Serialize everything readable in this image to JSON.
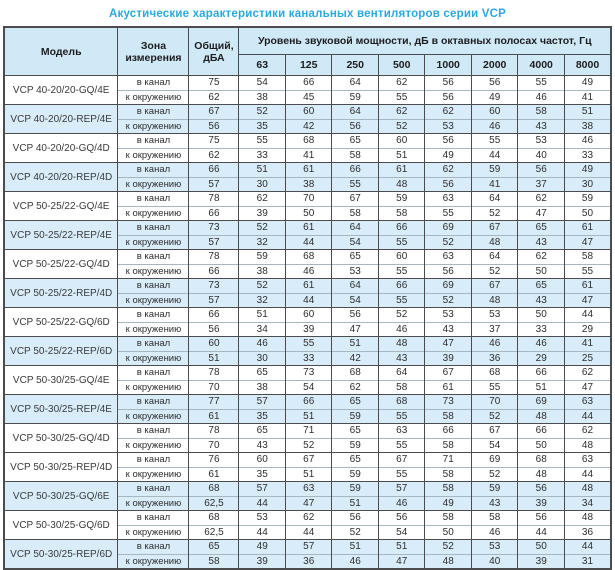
{
  "title": "Акустические характеристики канальных вентиляторов  серии VCP",
  "colors": {
    "title_accent": "#29a9e0",
    "header_bg": "#cfe9f6",
    "row_highlight_bg": "#d8edf9",
    "border_dark": "#4c4c4e",
    "border_light": "#a7b7c1"
  },
  "table": {
    "headers": {
      "model": "Модель",
      "zone": "Зона измерения",
      "total": "Общий, дБА",
      "spl": "Уровень звуковой мощности, дБ в октавных полосах частот, Гц",
      "frequencies": [
        "63",
        "125",
        "250",
        "500",
        "1000",
        "2000",
        "4000",
        "8000"
      ]
    },
    "zone_labels": {
      "duct": "в канал",
      "ambient": "к окружению"
    },
    "rows": [
      {
        "model": "VCP 40-20/20-GQ/4E",
        "highlight": false,
        "duct": {
          "total": "75",
          "values": [
            54,
            66,
            64,
            62,
            56,
            56,
            55,
            49
          ]
        },
        "ambient": {
          "total": "62",
          "values": [
            38,
            45,
            59,
            55,
            56,
            49,
            46,
            41
          ]
        }
      },
      {
        "model": "VCP 40-20/20-REP/4E",
        "highlight": true,
        "duct": {
          "total": "67",
          "values": [
            52,
            60,
            64,
            62,
            62,
            60,
            58,
            51
          ]
        },
        "ambient": {
          "total": "56",
          "values": [
            35,
            42,
            56,
            52,
            53,
            46,
            43,
            38
          ]
        }
      },
      {
        "model": "VCP 40-20/20-GQ/4D",
        "highlight": false,
        "duct": {
          "total": "75",
          "values": [
            55,
            68,
            65,
            60,
            56,
            55,
            53,
            46
          ]
        },
        "ambient": {
          "total": "62",
          "values": [
            33,
            41,
            58,
            51,
            49,
            44,
            40,
            33
          ]
        }
      },
      {
        "model": "VCP 40-20/20-REP/4D",
        "highlight": true,
        "duct": {
          "total": "66",
          "values": [
            51,
            61,
            66,
            61,
            62,
            59,
            56,
            49
          ]
        },
        "ambient": {
          "total": "57",
          "values": [
            30,
            38,
            55,
            48,
            56,
            41,
            37,
            30
          ]
        }
      },
      {
        "model": "VCP 50-25/22-GQ/4E",
        "highlight": false,
        "duct": {
          "total": "78",
          "values": [
            62,
            70,
            67,
            59,
            63,
            64,
            62,
            59
          ]
        },
        "ambient": {
          "total": "66",
          "values": [
            39,
            50,
            58,
            58,
            55,
            52,
            47,
            50
          ]
        }
      },
      {
        "model": "VCP 50-25/22-REP/4E",
        "highlight": true,
        "duct": {
          "total": "73",
          "values": [
            52,
            61,
            64,
            66,
            69,
            67,
            65,
            61
          ]
        },
        "ambient": {
          "total": "57",
          "values": [
            32,
            44,
            54,
            55,
            52,
            48,
            43,
            47
          ]
        }
      },
      {
        "model": "VCP 50-25/22-GQ/4D",
        "highlight": false,
        "duct": {
          "total": "78",
          "values": [
            59,
            68,
            65,
            60,
            63,
            64,
            62,
            58
          ]
        },
        "ambient": {
          "total": "66",
          "values": [
            38,
            46,
            53,
            55,
            56,
            52,
            50,
            55
          ]
        }
      },
      {
        "model": "VCP 50-25/22-REP/4D",
        "highlight": true,
        "duct": {
          "total": "73",
          "values": [
            52,
            61,
            64,
            66,
            69,
            67,
            65,
            61
          ]
        },
        "ambient": {
          "total": "57",
          "values": [
            32,
            44,
            54,
            55,
            52,
            48,
            43,
            47
          ]
        }
      },
      {
        "model": "VCP 50-25/22-GQ/6D",
        "highlight": false,
        "duct": {
          "total": "66",
          "values": [
            51,
            60,
            56,
            52,
            53,
            53,
            50,
            44
          ]
        },
        "ambient": {
          "total": "56",
          "values": [
            34,
            39,
            47,
            46,
            43,
            37,
            33,
            29
          ]
        }
      },
      {
        "model": "VCP 50-25/22-REP/6D",
        "highlight": true,
        "duct": {
          "total": "60",
          "values": [
            46,
            55,
            51,
            48,
            47,
            46,
            46,
            41
          ]
        },
        "ambient": {
          "total": "51",
          "values": [
            30,
            33,
            42,
            43,
            39,
            36,
            29,
            25
          ]
        }
      },
      {
        "model": "VCP 50-30/25-GQ/4E",
        "highlight": false,
        "duct": {
          "total": "78",
          "values": [
            65,
            73,
            68,
            64,
            67,
            68,
            66,
            62
          ]
        },
        "ambient": {
          "total": "70",
          "values": [
            38,
            54,
            62,
            58,
            61,
            55,
            51,
            47
          ]
        }
      },
      {
        "model": "VCP 50-30/25-REP/4E",
        "highlight": true,
        "duct": {
          "total": "77",
          "values": [
            57,
            66,
            65,
            68,
            73,
            70,
            69,
            63
          ]
        },
        "ambient": {
          "total": "61",
          "values": [
            35,
            51,
            59,
            55,
            58,
            52,
            48,
            44
          ]
        }
      },
      {
        "model": "VCP 50-30/25-GQ/4D",
        "highlight": false,
        "duct": {
          "total": "78",
          "values": [
            65,
            71,
            65,
            63,
            66,
            67,
            66,
            62
          ]
        },
        "ambient": {
          "total": "70",
          "values": [
            43,
            52,
            59,
            55,
            58,
            54,
            50,
            48
          ]
        }
      },
      {
        "model": "VCP 50-30/25-REP/4D",
        "highlight": false,
        "duct": {
          "total": "76",
          "values": [
            60,
            67,
            65,
            67,
            71,
            69,
            68,
            63
          ]
        },
        "ambient": {
          "total": "61",
          "values": [
            35,
            51,
            59,
            55,
            58,
            52,
            48,
            44
          ]
        }
      },
      {
        "model": "VCP 50-30/25-GQ/6E",
        "highlight": true,
        "duct": {
          "total": "68",
          "values": [
            57,
            63,
            59,
            57,
            58,
            59,
            56,
            48
          ]
        },
        "ambient": {
          "total": "62,5",
          "values": [
            44,
            47,
            51,
            46,
            49,
            43,
            39,
            34
          ]
        }
      },
      {
        "model": "VCP 50-30/25-GQ/6D",
        "highlight": false,
        "duct": {
          "total": "68",
          "values": [
            53,
            62,
            56,
            56,
            58,
            58,
            56,
            48
          ]
        },
        "ambient": {
          "total": "62,5",
          "values": [
            44,
            44,
            52,
            54,
            50,
            46,
            44,
            36
          ]
        }
      },
      {
        "model": "VCP 50-30/25-REP/6D",
        "highlight": true,
        "duct": {
          "total": "65",
          "values": [
            49,
            57,
            51,
            51,
            52,
            53,
            50,
            44
          ]
        },
        "ambient": {
          "total": "58",
          "values": [
            39,
            36,
            46,
            47,
            48,
            40,
            39,
            31
          ]
        }
      }
    ]
  }
}
